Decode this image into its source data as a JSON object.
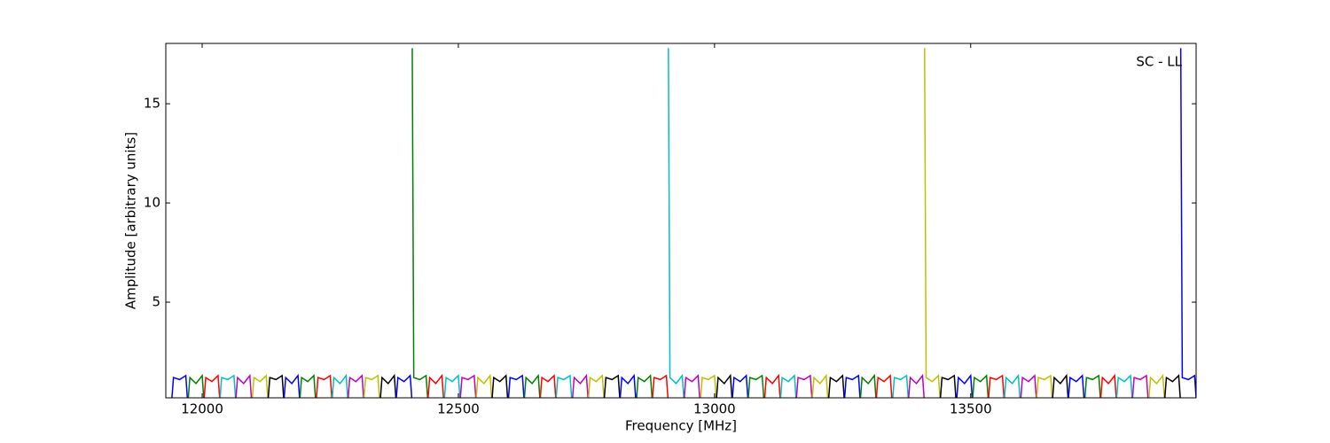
{
  "chart_data": {
    "type": "line",
    "annotation": "SC - LL",
    "xlabel": "Frequency [MHz]",
    "ylabel": "Amplitude [arbitrary units]",
    "xlim": [
      11929,
      13940
    ],
    "ylim": [
      0.18,
      18.04
    ],
    "xticks": [
      12000,
      12500,
      13000,
      13500
    ],
    "yticks": [
      5,
      10,
      15
    ],
    "series": [
      {
        "color": "#0000ff",
        "x": [
          11941,
          11944,
          11956,
          11968,
          11971
        ],
        "values": [
          0.2,
          1.2,
          1.1,
          1.3,
          0.2
        ]
      },
      {
        "color": "#008000",
        "x": [
          11973,
          11976,
          11988,
          12000,
          12003
        ],
        "values": [
          0.2,
          1.2,
          0.9,
          1.3,
          0.2
        ]
      },
      {
        "color": "#ff0000",
        "x": [
          12004,
          12007,
          12019,
          12031,
          12034
        ],
        "values": [
          0.2,
          1.2,
          1.0,
          1.3,
          0.2
        ]
      },
      {
        "color": "#00bfbf",
        "x": [
          12035,
          12038,
          12050,
          12062,
          12065
        ],
        "values": [
          0.2,
          1.2,
          1.1,
          1.3,
          0.2
        ]
      },
      {
        "color": "#bf00bf",
        "x": [
          12066,
          12069,
          12081,
          12093,
          12096
        ],
        "values": [
          0.2,
          1.2,
          0.9,
          1.3,
          0.2
        ]
      },
      {
        "color": "#bfbf00",
        "x": [
          12098,
          12101,
          12113,
          12125,
          12128
        ],
        "values": [
          0.2,
          1.2,
          1.0,
          1.3,
          0.2
        ]
      },
      {
        "color": "#000000",
        "x": [
          12129,
          12132,
          12144,
          12156,
          12159
        ],
        "values": [
          0.2,
          1.2,
          1.1,
          1.3,
          0.2
        ]
      },
      {
        "color": "#0000ff",
        "x": [
          12160,
          12163,
          12175,
          12187,
          12190
        ],
        "values": [
          0.2,
          1.2,
          0.9,
          1.3,
          0.2
        ]
      },
      {
        "color": "#008000",
        "x": [
          12191,
          12194,
          12206,
          12218,
          12221
        ],
        "values": [
          0.2,
          1.2,
          1.0,
          1.3,
          0.2
        ]
      },
      {
        "color": "#ff0000",
        "x": [
          12223,
          12226,
          12238,
          12250,
          12253
        ],
        "values": [
          0.2,
          1.2,
          1.1,
          1.3,
          0.2
        ]
      },
      {
        "color": "#00bfbf",
        "x": [
          12254,
          12257,
          12269,
          12281,
          12284
        ],
        "values": [
          0.2,
          1.2,
          0.9,
          1.3,
          0.2
        ]
      },
      {
        "color": "#bf00bf",
        "x": [
          12285,
          12288,
          12300,
          12312,
          12315
        ],
        "values": [
          0.2,
          1.2,
          1.0,
          1.3,
          0.2
        ]
      },
      {
        "color": "#bfbf00",
        "x": [
          12316,
          12319,
          12331,
          12343,
          12346
        ],
        "values": [
          0.2,
          1.2,
          1.1,
          1.3,
          0.2
        ]
      },
      {
        "color": "#000000",
        "x": [
          12348,
          12351,
          12363,
          12375,
          12378
        ],
        "values": [
          0.2,
          1.2,
          0.9,
          1.3,
          0.2
        ]
      },
      {
        "color": "#0000ff",
        "x": [
          12379,
          12382,
          12394,
          12406,
          12409
        ],
        "values": [
          0.2,
          1.2,
          1.0,
          1.3,
          0.2
        ]
      },
      {
        "color": "#008000",
        "x": [
          12410,
          12413,
          12425,
          12437,
          12440
        ],
        "values": [
          17.8,
          1.2,
          1.1,
          1.3,
          0.2
        ]
      },
      {
        "color": "#ff0000",
        "x": [
          12441,
          12444,
          12456,
          12468,
          12471
        ],
        "values": [
          0.2,
          1.2,
          0.9,
          1.3,
          0.2
        ]
      },
      {
        "color": "#00bfbf",
        "x": [
          12473,
          12476,
          12488,
          12500,
          12503
        ],
        "values": [
          0.2,
          1.2,
          1.0,
          1.3,
          0.2
        ]
      },
      {
        "color": "#bf00bf",
        "x": [
          12504,
          12507,
          12519,
          12531,
          12534
        ],
        "values": [
          0.2,
          1.2,
          1.1,
          1.3,
          0.2
        ]
      },
      {
        "color": "#bfbf00",
        "x": [
          12535,
          12538,
          12550,
          12562,
          12565
        ],
        "values": [
          0.2,
          1.2,
          0.9,
          1.3,
          0.2
        ]
      },
      {
        "color": "#000000",
        "x": [
          12566,
          12569,
          12581,
          12593,
          12596
        ],
        "values": [
          0.2,
          1.2,
          1.0,
          1.3,
          0.2
        ]
      },
      {
        "color": "#0000ff",
        "x": [
          12598,
          12601,
          12613,
          12625,
          12628
        ],
        "values": [
          0.2,
          1.2,
          1.1,
          1.3,
          0.2
        ]
      },
      {
        "color": "#008000",
        "x": [
          12629,
          12632,
          12644,
          12656,
          12659
        ],
        "values": [
          0.2,
          1.2,
          0.9,
          1.3,
          0.2
        ]
      },
      {
        "color": "#ff0000",
        "x": [
          12660,
          12663,
          12675,
          12687,
          12690
        ],
        "values": [
          0.2,
          1.2,
          1.0,
          1.3,
          0.2
        ]
      },
      {
        "color": "#00bfbf",
        "x": [
          12691,
          12694,
          12706,
          12718,
          12721
        ],
        "values": [
          0.2,
          1.2,
          1.1,
          1.3,
          0.2
        ]
      },
      {
        "color": "#bf00bf",
        "x": [
          12723,
          12726,
          12738,
          12750,
          12753
        ],
        "values": [
          0.2,
          1.2,
          0.9,
          1.3,
          0.2
        ]
      },
      {
        "color": "#bfbf00",
        "x": [
          12754,
          12757,
          12769,
          12781,
          12784
        ],
        "values": [
          0.2,
          1.2,
          1.0,
          1.3,
          0.2
        ]
      },
      {
        "color": "#000000",
        "x": [
          12785,
          12788,
          12800,
          12812,
          12815
        ],
        "values": [
          0.2,
          1.2,
          1.1,
          1.3,
          0.2
        ]
      },
      {
        "color": "#0000ff",
        "x": [
          12816,
          12819,
          12831,
          12843,
          12846
        ],
        "values": [
          0.2,
          1.2,
          0.9,
          1.3,
          0.2
        ]
      },
      {
        "color": "#008000",
        "x": [
          12848,
          12851,
          12863,
          12875,
          12878
        ],
        "values": [
          0.2,
          1.2,
          1.0,
          1.3,
          0.2
        ]
      },
      {
        "color": "#ff0000",
        "x": [
          12879,
          12882,
          12894,
          12906,
          12909
        ],
        "values": [
          0.2,
          1.2,
          1.1,
          1.3,
          0.2
        ]
      },
      {
        "color": "#00bfbf",
        "x": [
          12910,
          12913,
          12925,
          12937,
          12940
        ],
        "values": [
          17.8,
          1.2,
          0.9,
          1.3,
          0.2
        ]
      },
      {
        "color": "#bf00bf",
        "x": [
          12941,
          12944,
          12956,
          12968,
          12971
        ],
        "values": [
          0.2,
          1.2,
          1.0,
          1.3,
          0.2
        ]
      },
      {
        "color": "#bfbf00",
        "x": [
          12973,
          12976,
          12988,
          13000,
          13003
        ],
        "values": [
          0.2,
          1.2,
          1.1,
          1.3,
          0.2
        ]
      },
      {
        "color": "#000000",
        "x": [
          13004,
          13007,
          13019,
          13031,
          13034
        ],
        "values": [
          0.2,
          1.2,
          0.9,
          1.3,
          0.2
        ]
      },
      {
        "color": "#0000ff",
        "x": [
          13035,
          13038,
          13050,
          13062,
          13065
        ],
        "values": [
          0.2,
          1.2,
          1.0,
          1.3,
          0.2
        ]
      },
      {
        "color": "#008000",
        "x": [
          13066,
          13069,
          13081,
          13093,
          13096
        ],
        "values": [
          0.2,
          1.2,
          1.1,
          1.3,
          0.2
        ]
      },
      {
        "color": "#ff0000",
        "x": [
          13098,
          13101,
          13113,
          13125,
          13128
        ],
        "values": [
          0.2,
          1.2,
          0.9,
          1.3,
          0.2
        ]
      },
      {
        "color": "#00bfbf",
        "x": [
          13129,
          13132,
          13144,
          13156,
          13159
        ],
        "values": [
          0.2,
          1.2,
          1.0,
          1.3,
          0.2
        ]
      },
      {
        "color": "#bf00bf",
        "x": [
          13160,
          13163,
          13175,
          13187,
          13190
        ],
        "values": [
          0.2,
          1.2,
          1.1,
          1.3,
          0.2
        ]
      },
      {
        "color": "#bfbf00",
        "x": [
          13191,
          13194,
          13206,
          13218,
          13221
        ],
        "values": [
          0.2,
          1.2,
          0.9,
          1.3,
          0.2
        ]
      },
      {
        "color": "#000000",
        "x": [
          13223,
          13226,
          13238,
          13250,
          13253
        ],
        "values": [
          0.2,
          1.2,
          1.0,
          1.3,
          0.2
        ]
      },
      {
        "color": "#0000ff",
        "x": [
          13254,
          13257,
          13269,
          13281,
          13284
        ],
        "values": [
          0.2,
          1.2,
          1.1,
          1.3,
          0.2
        ]
      },
      {
        "color": "#008000",
        "x": [
          13285,
          13288,
          13300,
          13312,
          13315
        ],
        "values": [
          0.2,
          1.2,
          0.9,
          1.3,
          0.2
        ]
      },
      {
        "color": "#ff0000",
        "x": [
          13316,
          13319,
          13331,
          13343,
          13346
        ],
        "values": [
          0.2,
          1.2,
          1.0,
          1.3,
          0.2
        ]
      },
      {
        "color": "#00bfbf",
        "x": [
          13348,
          13351,
          13363,
          13375,
          13378
        ],
        "values": [
          0.2,
          1.2,
          1.1,
          1.3,
          0.2
        ]
      },
      {
        "color": "#bf00bf",
        "x": [
          13379,
          13382,
          13394,
          13406,
          13409
        ],
        "values": [
          0.2,
          1.2,
          0.9,
          1.3,
          0.2
        ]
      },
      {
        "color": "#bfbf00",
        "x": [
          13410,
          13413,
          13425,
          13437,
          13440
        ],
        "values": [
          17.8,
          1.2,
          1.0,
          1.3,
          0.2
        ]
      },
      {
        "color": "#000000",
        "x": [
          13441,
          13444,
          13456,
          13468,
          13471
        ],
        "values": [
          0.2,
          1.2,
          1.1,
          1.3,
          0.2
        ]
      },
      {
        "color": "#0000ff",
        "x": [
          13473,
          13476,
          13488,
          13500,
          13503
        ],
        "values": [
          0.2,
          1.2,
          0.9,
          1.3,
          0.2
        ]
      },
      {
        "color": "#008000",
        "x": [
          13504,
          13507,
          13519,
          13531,
          13534
        ],
        "values": [
          0.2,
          1.2,
          1.0,
          1.3,
          0.2
        ]
      },
      {
        "color": "#ff0000",
        "x": [
          13535,
          13538,
          13550,
          13562,
          13565
        ],
        "values": [
          0.2,
          1.2,
          1.1,
          1.3,
          0.2
        ]
      },
      {
        "color": "#00bfbf",
        "x": [
          13566,
          13569,
          13581,
          13593,
          13596
        ],
        "values": [
          0.2,
          1.2,
          0.9,
          1.3,
          0.2
        ]
      },
      {
        "color": "#bf00bf",
        "x": [
          13598,
          13601,
          13613,
          13625,
          13628
        ],
        "values": [
          0.2,
          1.2,
          1.0,
          1.3,
          0.2
        ]
      },
      {
        "color": "#bfbf00",
        "x": [
          13629,
          13632,
          13644,
          13656,
          13659
        ],
        "values": [
          0.2,
          1.2,
          1.1,
          1.3,
          0.2
        ]
      },
      {
        "color": "#000000",
        "x": [
          13660,
          13663,
          13675,
          13687,
          13690
        ],
        "values": [
          0.2,
          1.2,
          0.9,
          1.3,
          0.2
        ]
      },
      {
        "color": "#0000ff",
        "x": [
          13691,
          13694,
          13706,
          13718,
          13721
        ],
        "values": [
          0.2,
          1.2,
          1.0,
          1.3,
          0.2
        ]
      },
      {
        "color": "#008000",
        "x": [
          13723,
          13726,
          13738,
          13750,
          13753
        ],
        "values": [
          0.2,
          1.2,
          1.1,
          1.3,
          0.2
        ]
      },
      {
        "color": "#ff0000",
        "x": [
          13754,
          13757,
          13769,
          13781,
          13784
        ],
        "values": [
          0.2,
          1.2,
          0.9,
          1.3,
          0.2
        ]
      },
      {
        "color": "#00bfbf",
        "x": [
          13785,
          13788,
          13800,
          13812,
          13815
        ],
        "values": [
          0.2,
          1.2,
          1.0,
          1.3,
          0.2
        ]
      },
      {
        "color": "#bf00bf",
        "x": [
          13816,
          13819,
          13831,
          13843,
          13846
        ],
        "values": [
          0.2,
          1.2,
          1.1,
          1.3,
          0.2
        ]
      },
      {
        "color": "#bfbf00",
        "x": [
          13848,
          13851,
          13863,
          13875,
          13878
        ],
        "values": [
          0.2,
          1.2,
          0.9,
          1.3,
          0.2
        ]
      },
      {
        "color": "#000000",
        "x": [
          13879,
          13882,
          13894,
          13906,
          13909
        ],
        "values": [
          0.2,
          1.2,
          1.0,
          1.3,
          0.2
        ]
      },
      {
        "color": "#0000ff",
        "x": [
          13910,
          13913,
          13925,
          13937,
          13940
        ],
        "values": [
          17.8,
          1.2,
          1.1,
          1.3,
          0.2
        ]
      }
    ]
  }
}
